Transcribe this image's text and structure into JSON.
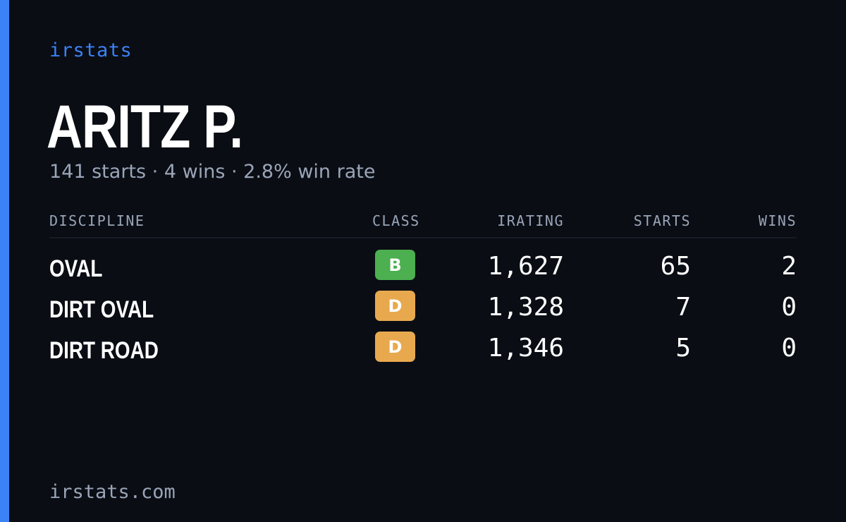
{
  "brand": "irstats",
  "player": {
    "name": "ARITZ P.",
    "starts_text": "141 starts",
    "wins_text": "4 wins",
    "win_rate_text": "2.8% win rate",
    "separator": "·"
  },
  "table": {
    "headers": {
      "discipline": "DISCIPLINE",
      "class": "CLASS",
      "irating": "IRATING",
      "starts": "STARTS",
      "wins": "WINS"
    },
    "rows": [
      {
        "discipline": "OVAL",
        "class": "B",
        "class_color": "#4caf50",
        "irating": "1,627",
        "starts": "65",
        "wins": "2"
      },
      {
        "discipline": "DIRT OVAL",
        "class": "D",
        "class_color": "#e8a94e",
        "irating": "1,328",
        "starts": "7",
        "wins": "0"
      },
      {
        "discipline": "DIRT ROAD",
        "class": "D",
        "class_color": "#e8a94e",
        "irating": "1,346",
        "starts": "5",
        "wins": "0"
      }
    ]
  },
  "footer": "irstats.com",
  "colors": {
    "background": "#0a0d14",
    "accent": "#3b82f6",
    "muted": "#9aa5b8"
  }
}
